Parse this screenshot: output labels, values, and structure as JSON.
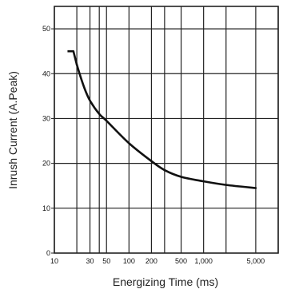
{
  "chart_data": {
    "type": "line",
    "title": "",
    "xlabel": "Energizing Time (ms)",
    "ylabel": "Inrush Current (A.Peak)",
    "x_scale": "log",
    "y_scale": "linear",
    "xlim": [
      10,
      10000
    ],
    "ylim": [
      0,
      55
    ],
    "grid": true,
    "legend": "none",
    "x_ticks": [
      {
        "value": 10,
        "label": "10"
      },
      {
        "value": 30,
        "label": "30"
      },
      {
        "value": 50,
        "label": "50"
      },
      {
        "value": 100,
        "label": "100"
      },
      {
        "value": 200,
        "label": "200"
      },
      {
        "value": 500,
        "label": "500"
      },
      {
        "value": 1000,
        "label": "1,000"
      },
      {
        "value": 5000,
        "label": "5,000"
      }
    ],
    "x_gridlines": [
      10,
      20,
      30,
      40,
      50,
      100,
      200,
      300,
      500,
      1000,
      2000,
      5000,
      10000
    ],
    "y_ticks": [
      {
        "value": 0,
        "label": "0"
      },
      {
        "value": 10,
        "label": "10"
      },
      {
        "value": 20,
        "label": "20"
      },
      {
        "value": 30,
        "label": "30"
      },
      {
        "value": 40,
        "label": "40"
      },
      {
        "value": 50,
        "label": "50"
      }
    ],
    "series": [
      {
        "points": [
          {
            "x": 15,
            "y": 45
          },
          {
            "x": 18,
            "y": 45
          },
          {
            "x": 20,
            "y": 42
          },
          {
            "x": 25,
            "y": 37
          },
          {
            "x": 30,
            "y": 34
          },
          {
            "x": 40,
            "y": 31
          },
          {
            "x": 50,
            "y": 29.5
          },
          {
            "x": 100,
            "y": 24.5
          },
          {
            "x": 200,
            "y": 20.5
          },
          {
            "x": 300,
            "y": 18.5
          },
          {
            "x": 500,
            "y": 17
          },
          {
            "x": 1000,
            "y": 16
          },
          {
            "x": 2000,
            "y": 15.2
          },
          {
            "x": 5000,
            "y": 14.5
          }
        ]
      }
    ],
    "colors": {
      "line": "#111111",
      "grid": "#222222",
      "background": "#ffffff"
    }
  }
}
